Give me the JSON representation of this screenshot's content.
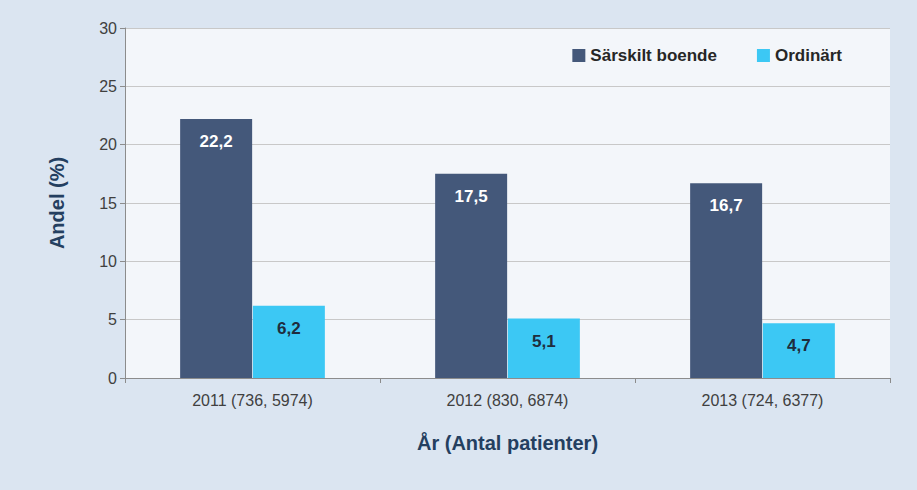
{
  "chart_data": {
    "type": "bar",
    "categories": [
      "2011 (736, 5974)",
      "2012 (830, 6874)",
      "2013 (724, 6377)"
    ],
    "series": [
      {
        "name": "Särskilt boende",
        "color": "#44587a",
        "values": [
          22.2,
          17.5,
          16.7
        ],
        "value_labels": [
          "22,2",
          "17,5",
          "16,7"
        ]
      },
      {
        "name": "Ordinärt",
        "color": "#3cc8f4",
        "values": [
          6.2,
          5.1,
          4.7
        ],
        "value_labels": [
          "6,2",
          "5,1",
          "4,7"
        ]
      }
    ],
    "xlabel": "År (Antal patienter)",
    "ylabel": "Andel (%)",
    "ylim": [
      0,
      30
    ],
    "yticks": [
      0,
      5,
      10,
      15,
      20,
      25,
      30
    ],
    "grid": true,
    "legend": "upper right",
    "data_labels": true
  }
}
